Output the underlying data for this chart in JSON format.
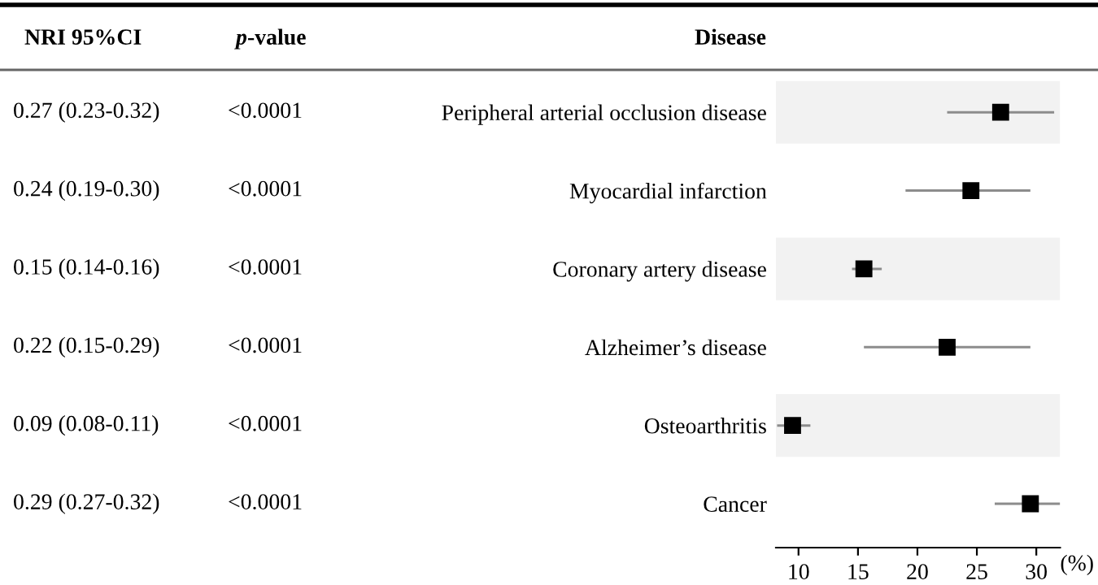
{
  "chart_data": {
    "type": "scatter",
    "orientation": "horizontal",
    "ylabel": "Disease",
    "xlabel": "(%)",
    "categories": [
      "Peripheral arterial occlusion disease",
      "Myocardial infarction",
      "Coronary artery disease",
      "Alzheimer’s disease",
      "Osteoarthritis",
      "Cancer"
    ],
    "series": [
      {
        "color": "#000000",
        "values": [
          27,
          24.5,
          15.5,
          22.5,
          9.5,
          29.5
        ],
        "errors": [
          [
            22.5,
            31.5
          ],
          [
            19,
            29.5
          ],
          [
            14.5,
            17
          ],
          [
            15.5,
            29.5
          ],
          [
            8.2,
            11
          ],
          [
            26.5,
            32
          ]
        ],
        "value_labels": [
          "0.27 (0.23-0.32)",
          "0.24 (0.19-0.30)",
          "0.15 (0.14-0.16)",
          "0.22 (0.15-0.29)",
          "0.09 (0.08-0.11)",
          "0.29 (0.27-0.32)"
        ]
      }
    ],
    "annotations": [
      "NRI 95%CI",
      "p-value",
      "<0.0001",
      "<0.0001",
      "<0.0001",
      "<0.0001",
      "<0.0001",
      "<0.0001"
    ],
    "bands": [
      {
        "axis": "y",
        "from": "Peripheral arterial occlusion disease",
        "to": "Peripheral arterial occlusion disease",
        "color": "#f2f2f2"
      },
      {
        "axis": "y",
        "from": "Coronary artery disease",
        "to": "Coronary artery disease",
        "color": "#f2f2f2"
      },
      {
        "axis": "y",
        "from": "Osteoarthritis",
        "to": "Osteoarthritis",
        "color": "#f2f2f2"
      }
    ],
    "marker": "square",
    "xlim": [
      8.1,
      32
    ],
    "xticks": [
      10,
      15,
      20,
      25,
      30
    ],
    "grid": false,
    "legend": false
  }
}
